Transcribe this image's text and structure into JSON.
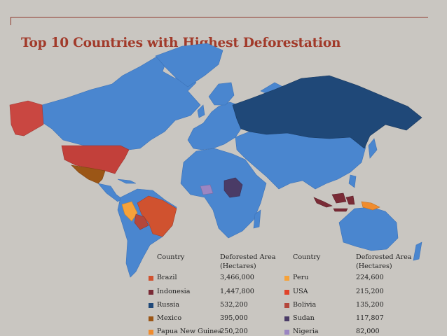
{
  "title": "Top 10 Countries with Highest Deforestation",
  "colors": {
    "background": "#c9c6c1",
    "land": "#4a86cf",
    "title": "#a13a2a"
  },
  "table": {
    "headers": {
      "country": "Country",
      "area_line1": "Deforested Area",
      "area_line2": "(Hectares)"
    },
    "left": [
      {
        "country": "Brazil",
        "area": "3,466,000",
        "color": "#d0522f"
      },
      {
        "country": "Indonesia",
        "area": "1,447,800",
        "color": "#7a2b36"
      },
      {
        "country": "Russia",
        "area": "532,200",
        "color": "#1f4878"
      },
      {
        "country": "Mexico",
        "area": "395,000",
        "color": "#9b5616"
      },
      {
        "country": "Papua New Guinea",
        "area": "250,200",
        "color": "#f08c2e"
      }
    ],
    "right": [
      {
        "country": "Peru",
        "area": "224,600",
        "color": "#f6a23a"
      },
      {
        "country": "USA",
        "area": "215,200",
        "color": "#e0432a"
      },
      {
        "country": "Bolivia",
        "area": "135,200",
        "color": "#b4473c"
      },
      {
        "country": "Sudan",
        "area": "117,807",
        "color": "#4a3b66"
      },
      {
        "country": "Nigeria",
        "area": "82,000",
        "color": "#9b86c2"
      }
    ]
  }
}
